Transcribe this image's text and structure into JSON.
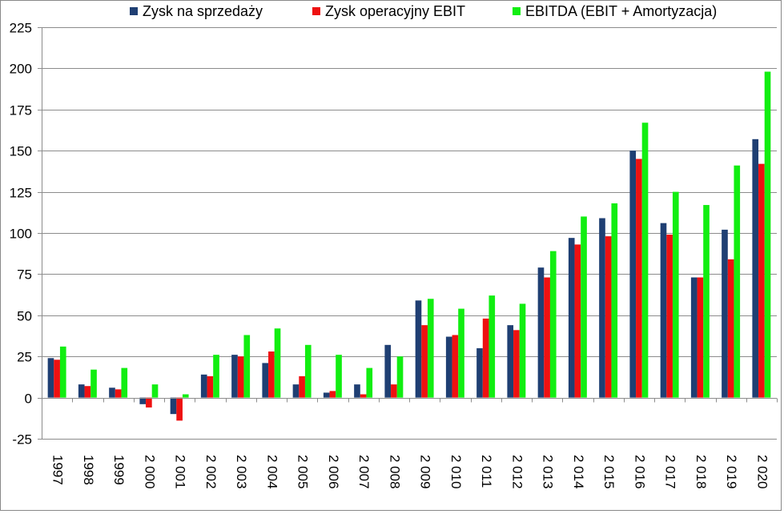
{
  "chart_data": {
    "type": "bar",
    "title": "",
    "xlabel": "",
    "ylabel": "",
    "ylim": [
      -25,
      225
    ],
    "yticks": [
      -25,
      0,
      25,
      50,
      75,
      100,
      125,
      150,
      175,
      200,
      225
    ],
    "grid": true,
    "legend_position": "top",
    "categories": [
      "1997",
      "1998",
      "1999",
      "2 000",
      "2 001",
      "2 002",
      "2 003",
      "2 004",
      "2 005",
      "2 006",
      "2 007",
      "2 008",
      "2 009",
      "2 010",
      "2 011",
      "2 012",
      "2 013",
      "2 014",
      "2 015",
      "2 016",
      "2 017",
      "2 018",
      "2 019",
      "2 020"
    ],
    "series": [
      {
        "name": "Zysk na sprzedaży",
        "color": "#1f3f73",
        "values": [
          24,
          8,
          6,
          -4,
          -10,
          14,
          26,
          21,
          8,
          3,
          8,
          32,
          59,
          37,
          30,
          44,
          79,
          97,
          109,
          150,
          106,
          73,
          102,
          157
        ]
      },
      {
        "name": "Zysk operacyjny EBIT",
        "color": "#ee1111",
        "values": [
          23,
          7,
          5,
          -6,
          -14,
          13,
          25,
          28,
          13,
          4,
          2,
          8,
          44,
          38,
          48,
          41,
          73,
          93,
          98,
          145,
          99,
          73,
          84,
          142
        ]
      },
      {
        "name": "EBITDA (EBIT + Amortyzacja)",
        "color": "#11ee11",
        "values": [
          31,
          17,
          18,
          8,
          2,
          26,
          38,
          42,
          32,
          26,
          18,
          25,
          60,
          54,
          62,
          57,
          89,
          110,
          118,
          167,
          125,
          117,
          141,
          198
        ]
      }
    ]
  }
}
